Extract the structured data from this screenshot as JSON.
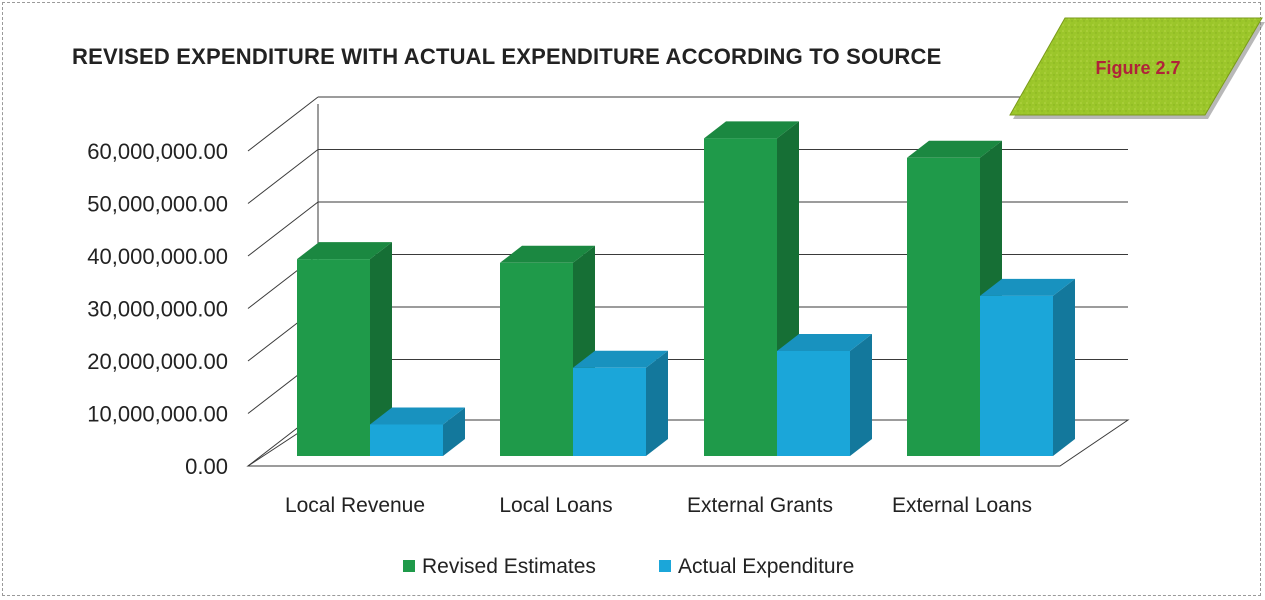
{
  "figure_badge": "Figure 2.7",
  "chart_data": {
    "type": "bar",
    "title": "REVISED EXPENDITURE WITH ACTUAL EXPENDITURE ACCORDING TO SOURCE",
    "xlabel": "",
    "ylabel": "",
    "categories": [
      "Local Revenue",
      "Local Loans",
      "External Grants",
      "External Loans"
    ],
    "series": [
      {
        "name": "Revised Estimates",
        "values": [
          37500000,
          36800000,
          60500000,
          56800000
        ],
        "color": "#1f9a4a"
      },
      {
        "name": "Actual Expenditure",
        "values": [
          6000000,
          16800000,
          20000000,
          30500000
        ],
        "color": "#1ba6d9"
      }
    ],
    "ylim": [
      0,
      70000000
    ],
    "yticks": [
      0,
      10000000,
      20000000,
      30000000,
      40000000,
      50000000,
      60000000
    ],
    "ytick_labels": [
      "0.00",
      "10,000,000.00",
      "20,000,000.00",
      "30,000,000.00",
      "40,000,000.00",
      "50,000,000.00",
      "60,000,000.00"
    ],
    "grid": true,
    "style": "3d-clustered-column",
    "legend_position": "bottom"
  }
}
